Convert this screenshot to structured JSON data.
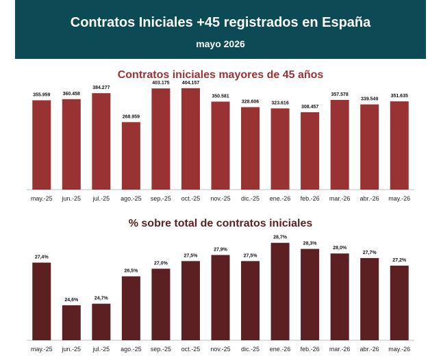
{
  "header": {
    "title": "Contratos Iniciales +45 registrados en España",
    "subtitle": "mayo 2026"
  },
  "colors": {
    "banner": "#0c4a55",
    "chart1_bar": "#993233",
    "chart2_bar": "#5c1f22"
  },
  "chart_data": [
    {
      "type": "bar",
      "title": "Contratos iniciales mayores de 45 años",
      "categories": [
        "may.-25",
        "jun.-25",
        "jul.-25",
        "ago.-25",
        "sep.-25",
        "oct.-25",
        "nov.-25",
        "dic.-25",
        "ene.-26",
        "feb.-26",
        "mar.-26",
        "abr.-26",
        "may.-26"
      ],
      "values": [
        355959,
        360458,
        384277,
        268959,
        403175,
        404157,
        350581,
        328606,
        323616,
        308457,
        357578,
        339549,
        351635
      ],
      "labels": [
        "355.959",
        "360.458",
        "384.277",
        "268.959",
        "403.175",
        "404.157",
        "350.581",
        "328.606",
        "323.616",
        "308.457",
        "357.578",
        "339.549",
        "351.635"
      ],
      "ylim": [
        0,
        450000
      ],
      "grid": false,
      "legend": false
    },
    {
      "type": "bar",
      "title": "% sobre total de contratos iniciales",
      "categories": [
        "may.-25",
        "jun.-25",
        "jul.-25",
        "ago.-25",
        "sep.-25",
        "oct.-25",
        "nov.-25",
        "dic.-25",
        "ene.-26",
        "feb.-26",
        "mar.-26",
        "abr.-26",
        "may.-26"
      ],
      "values": [
        27.4,
        24.6,
        24.7,
        26.5,
        27.0,
        27.5,
        27.9,
        27.5,
        28.7,
        28.3,
        28.0,
        27.7,
        27.2
      ],
      "labels": [
        "27,4%",
        "24,6%",
        "24,7%",
        "26,5%",
        "27,0%",
        "27,5%",
        "27,9%",
        "27,5%",
        "28,7%",
        "28,3%",
        "28,0%",
        "27,7%",
        "27,2%"
      ],
      "ylim": [
        22.3,
        29.0
      ],
      "grid": false,
      "legend": false
    }
  ]
}
